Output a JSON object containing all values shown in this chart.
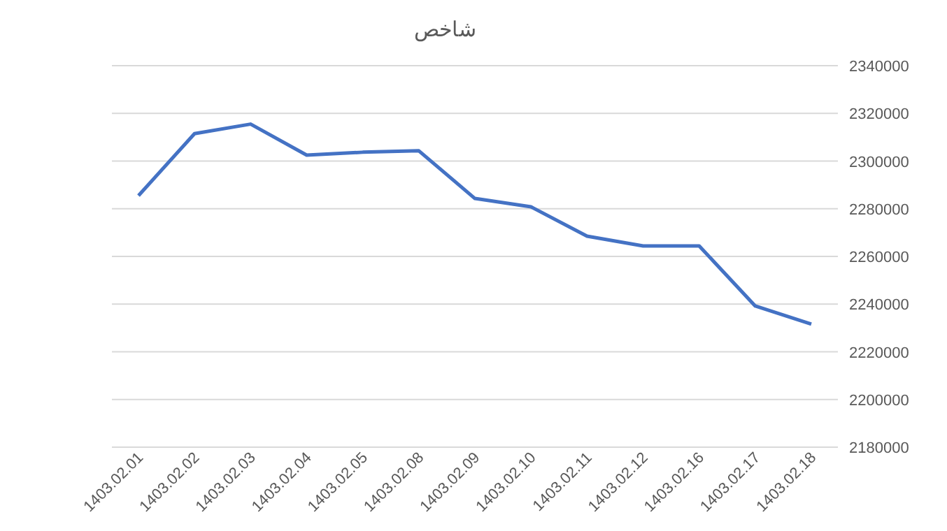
{
  "chart_data": {
    "type": "line",
    "title": "شاخص",
    "categories": [
      "1403.02.01",
      "1403.02.02",
      "1403.02.03",
      "1403.02.04",
      "1403.02.05",
      "1403.02.08",
      "1403.02.09",
      "1403.02.10",
      "1403.02.11",
      "1403.02.12",
      "1403.02.16",
      "1403.02.17",
      "1403.02.18"
    ],
    "series": [
      {
        "color": "#4472c4",
        "values": [
          2285500,
          2311500,
          2315500,
          2302500,
          2303700,
          2304300,
          2284300,
          2280800,
          2268500,
          2264400,
          2264400,
          2239200,
          2231600
        ]
      }
    ],
    "ylim": [
      2180000,
      2340000
    ],
    "yticks": [
      2180000,
      2200000,
      2220000,
      2240000,
      2260000,
      2280000,
      2300000,
      2320000,
      2340000
    ],
    "grid": "y",
    "marker": "none",
    "line_style": "solid"
  }
}
